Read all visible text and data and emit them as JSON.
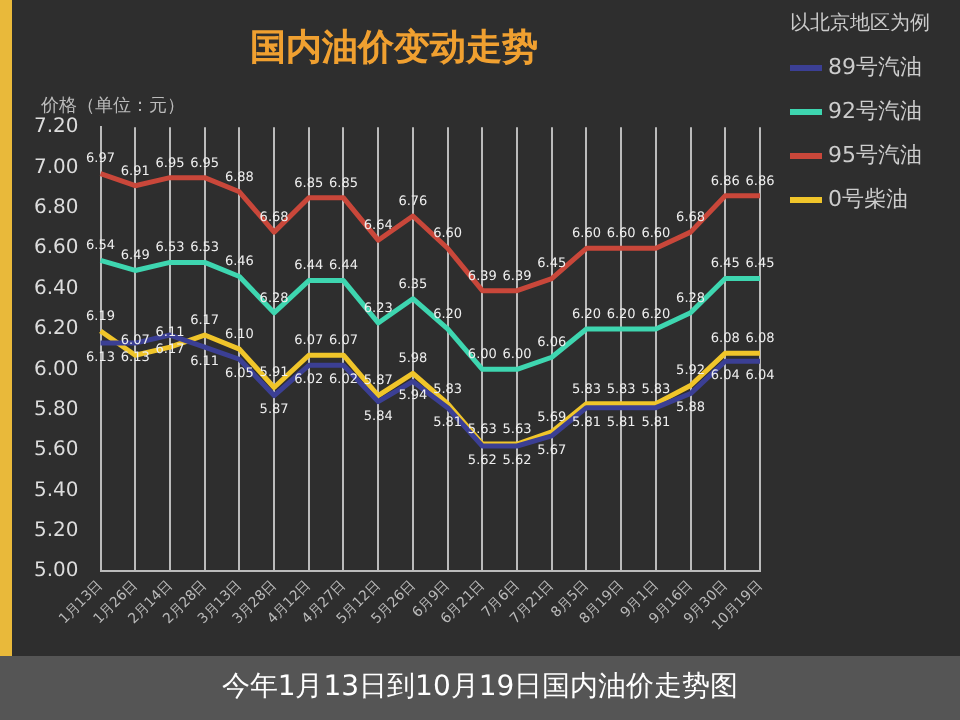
{
  "chart_data": {
    "type": "line",
    "title": "国内油价变动走势",
    "ylabel": "价格（单位：元）",
    "legend_title": "以北京地区为例",
    "categories": [
      "1月13日",
      "1月26日",
      "2月14日",
      "2月28日",
      "3月13日",
      "3月28日",
      "4月12日",
      "4月27日",
      "5月12日",
      "5月26日",
      "6月9日",
      "6月21日",
      "7月6日",
      "7月21日",
      "8月5日",
      "8月19日",
      "9月1日",
      "9月16日",
      "9月30日",
      "10月19日"
    ],
    "series": [
      {
        "name": "89号汽油",
        "color": "#3b3f94",
        "values": [
          6.13,
          6.13,
          6.17,
          6.11,
          6.05,
          5.87,
          6.02,
          6.02,
          5.84,
          5.94,
          5.81,
          5.62,
          5.62,
          5.67,
          5.81,
          5.81,
          5.81,
          5.88,
          6.04,
          6.04
        ],
        "value_labels": [
          "6.13",
          "6.13",
          "6.17",
          "6.11",
          "6.05",
          "5.87",
          "6.02",
          "6.02",
          "5.84",
          "5.94",
          "5.81",
          "5.62",
          "5.62",
          "5.67",
          "5.81",
          "5.81",
          "5.81",
          "5.88",
          "6.04",
          "6.04"
        ]
      },
      {
        "name": "92号汽油",
        "color": "#3ed6b0",
        "values": [
          6.54,
          6.49,
          6.53,
          6.53,
          6.46,
          6.28,
          6.44,
          6.44,
          6.23,
          6.35,
          6.2,
          6.0,
          6.0,
          6.06,
          6.2,
          6.2,
          6.2,
          6.28,
          6.45,
          6.45
        ],
        "value_labels": [
          "6.54",
          "6.49",
          "6.53",
          "6.53",
          "6.46",
          "6.28",
          "6.44",
          "6.44",
          "6.23",
          "6.35",
          "6.20",
          "6.00",
          "6.00",
          "6.06",
          "6.20",
          "6.20",
          "6.20",
          "6.28",
          "6.45",
          "6.45"
        ]
      },
      {
        "name": "95号汽油",
        "color": "#c9473a",
        "values": [
          6.97,
          6.91,
          6.95,
          6.95,
          6.88,
          6.68,
          6.85,
          6.85,
          6.64,
          6.76,
          6.6,
          6.39,
          6.39,
          6.45,
          6.6,
          6.6,
          6.6,
          6.68,
          6.86,
          6.86
        ],
        "value_labels": [
          "6.97",
          "6.91",
          "6.95",
          "6.95",
          "6.88",
          "6.68",
          "6.85",
          "6.85",
          "6.64",
          "6.76",
          "6.60",
          "6.39",
          "6.39",
          "6.45",
          "6.60",
          "6.60",
          "6.60",
          "6.68",
          "6.86",
          "6.86"
        ]
      },
      {
        "name": "0号柴油",
        "color": "#f0c52a",
        "values": [
          6.19,
          6.07,
          6.11,
          6.17,
          6.1,
          5.91,
          6.07,
          6.07,
          5.87,
          5.98,
          5.83,
          5.63,
          5.63,
          5.69,
          5.83,
          5.83,
          5.83,
          5.92,
          6.08,
          6.08
        ],
        "value_labels": [
          "6.19",
          "6.07",
          "6.11",
          "6.17",
          "6.10",
          "5.91",
          "6.07",
          "6.07",
          "5.87",
          "5.98",
          "5.83",
          "5.63",
          "5.63",
          "5.69",
          "5.83",
          "5.83",
          "5.83",
          "5.92",
          "6.08",
          "6.08"
        ]
      }
    ],
    "ylim": [
      5,
      7.2
    ],
    "yticks": [
      {
        "value": 5,
        "label": "5.00"
      },
      {
        "value": 5.2,
        "label": "5.20"
      },
      {
        "value": 5.4,
        "label": "5.40"
      },
      {
        "value": 5.6,
        "label": "5.60"
      },
      {
        "value": 5.8,
        "label": "5.80"
      },
      {
        "value": 6,
        "label": "6.00"
      },
      {
        "value": 6.2,
        "label": "6.20"
      },
      {
        "value": 6.4,
        "label": "6.40"
      },
      {
        "value": 6.6,
        "label": "6.60"
      },
      {
        "value": 6.8,
        "label": "6.80"
      },
      {
        "value": 7,
        "label": "7.00"
      },
      {
        "value": 7.2,
        "label": "7.20"
      }
    ],
    "grid": "x",
    "legend": "right",
    "marker": "none",
    "line_style": "solid",
    "annotations": [
      "今年1月13日到10月19日国内油价走势图"
    ]
  }
}
